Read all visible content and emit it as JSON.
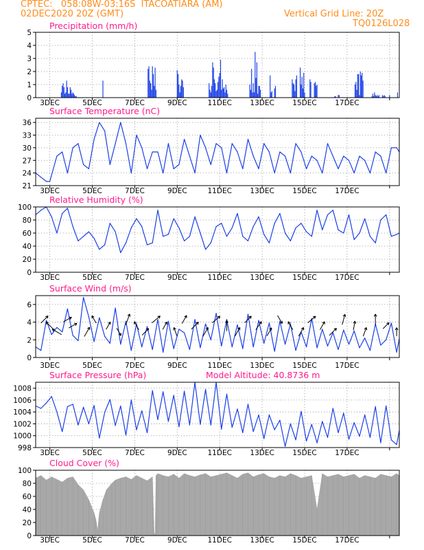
{
  "header": {
    "line1": "CPTEC:   058:08W-03:16S  ITACOATIARA (AM)",
    "line2": "02DEC2020 20Z (GMT)",
    "right1": "Vertical Grid Line: 20Z",
    "right2": "TQ0126L028"
  },
  "colors": {
    "line": "#1a3fe6",
    "title": "#ff1a8c",
    "header": "#ff8c1a",
    "cloud": "#a8a8a8",
    "arrow": "#000000"
  },
  "chart_data": [
    {
      "type": "bar",
      "title": "Precipitation (mm/h)",
      "ylim": [
        0,
        5
      ],
      "yticks": [
        0,
        1,
        2,
        3,
        4,
        5
      ],
      "xticks": [
        "3DEC",
        "5DEC",
        "7DEC",
        "9DEC",
        "11DEC",
        "13DEC",
        "15DEC",
        "17DEC"
      ],
      "xunit": "hours from 02DEC2020 20Z",
      "x": [
        29,
        30,
        31,
        32,
        33,
        34,
        35,
        36,
        37,
        38,
        39,
        40,
        41,
        42,
        43,
        44,
        45,
        46,
        76,
        127,
        128,
        129,
        130,
        131,
        132,
        133,
        134,
        135,
        136,
        160,
        161,
        162,
        163,
        164,
        165,
        166,
        167,
        196,
        197,
        198,
        199,
        200,
        201,
        202,
        203,
        204,
        205,
        206,
        207,
        208,
        209,
        210,
        211,
        212,
        213,
        214,
        215,
        216,
        217,
        242,
        243,
        244,
        245,
        246,
        247,
        248,
        249,
        250,
        251,
        252,
        253,
        254,
        265,
        266,
        267,
        270,
        271,
        290,
        291,
        292,
        293,
        294,
        295,
        299,
        300,
        301,
        302,
        303,
        304,
        310,
        311,
        315,
        316,
        317,
        318,
        338,
        339,
        342,
        343,
        361,
        362,
        363,
        364,
        365,
        366,
        367,
        368,
        369,
        370,
        380,
        381,
        382,
        383,
        384,
        385,
        386,
        387,
        388,
        392,
        393,
        394,
        395,
        400,
        409
      ],
      "values": [
        0.4,
        0.9,
        1.1,
        0.8,
        0.3,
        0.4,
        1.3,
        0.8,
        0.3,
        0.3,
        0.8,
        0.6,
        0.3,
        0.4,
        0.3,
        0.2,
        0.1,
        0.1,
        1.3,
        2.2,
        2.4,
        1.3,
        1.1,
        0.6,
        2.4,
        1.8,
        0.9,
        2.3,
        0.6,
        2.1,
        1.8,
        1.0,
        0.4,
        0.9,
        1.4,
        1.3,
        0.8,
        1.1,
        0.6,
        0.4,
        0.9,
        2.7,
        2.3,
        1.4,
        1.1,
        0.5,
        0.6,
        1.2,
        1.6,
        1.9,
        2.9,
        0.6,
        1.4,
        0.7,
        0.8,
        0.4,
        1.0,
        0.6,
        0.3,
        1.0,
        0.6,
        2.2,
        0.4,
        1.1,
        0.4,
        3.5,
        1.5,
        2.7,
        0.3,
        0.9,
        0.9,
        0.6,
        1.7,
        0.4,
        0.5,
        0.7,
        0.9,
        1.4,
        1.1,
        1.0,
        0.5,
        1.4,
        1.7,
        2.3,
        1.0,
        1.6,
        0.7,
        1.9,
        0.4,
        1.4,
        1.2,
        1.1,
        1.2,
        0.9,
        1.0,
        0.1,
        0.1,
        0.2,
        0.2,
        1.0,
        1.2,
        0.6,
        1.8,
        1.8,
        0.2,
        2.0,
        1.7,
        1.9,
        1.3,
        0.1,
        0.3,
        0.1,
        0.4,
        0.2,
        0.1,
        0.2,
        0.1,
        0.2,
        0.2,
        0.1,
        0.2,
        0.1,
        0.2,
        0.4
      ]
    },
    {
      "type": "line",
      "title": "Surface Temperature (nC)",
      "ylim": [
        21,
        37
      ],
      "yticks": [
        21,
        24,
        27,
        30,
        33,
        36
      ],
      "xticks": [
        "3DEC",
        "5DEC",
        "7DEC",
        "9DEC",
        "11DEC",
        "13DEC",
        "15DEC",
        "17DEC"
      ],
      "x": [
        0,
        6,
        12,
        16,
        24,
        30,
        36,
        42,
        48,
        54,
        60,
        66,
        72,
        78,
        84,
        90,
        96,
        102,
        108,
        114,
        120,
        126,
        132,
        138,
        144,
        150,
        156,
        162,
        168,
        174,
        180,
        186,
        192,
        198,
        204,
        210,
        216,
        222,
        228,
        234,
        240,
        246,
        252,
        258,
        264,
        270,
        276,
        282,
        288,
        294,
        300,
        306,
        312,
        318,
        324,
        330,
        336,
        342,
        348,
        354,
        360,
        366,
        372,
        378,
        384,
        390,
        396,
        402,
        408,
        411
      ],
      "values": [
        24,
        23,
        22,
        22,
        28,
        29,
        24,
        30,
        31,
        26,
        25,
        32,
        36,
        34,
        26,
        31,
        36,
        31,
        24,
        33,
        30,
        25,
        29,
        29,
        24,
        31,
        25,
        26,
        32,
        28,
        24,
        33,
        30,
        26,
        31,
        30,
        24,
        31,
        29,
        25,
        32,
        28,
        25,
        31,
        29,
        24,
        29,
        28,
        24,
        31,
        29,
        25,
        28,
        27,
        24,
        31,
        28,
        25,
        28,
        27,
        24,
        28,
        27,
        24,
        29,
        28,
        24,
        30,
        30,
        29
      ]
    },
    {
      "type": "line",
      "title": "Relative Humidity (%)",
      "ylim": [
        0,
        100
      ],
      "yticks": [
        0,
        20,
        40,
        60,
        80,
        100
      ],
      "xticks": [
        "3DEC",
        "5DEC",
        "7DEC",
        "9DEC",
        "11DEC",
        "13DEC",
        "15DEC",
        "17DEC"
      ],
      "x": [
        0,
        6,
        12,
        18,
        24,
        30,
        36,
        42,
        48,
        54,
        60,
        66,
        72,
        78,
        84,
        90,
        96,
        102,
        108,
        114,
        120,
        126,
        132,
        138,
        144,
        150,
        156,
        162,
        168,
        174,
        180,
        186,
        192,
        198,
        204,
        210,
        216,
        222,
        228,
        234,
        240,
        246,
        252,
        258,
        264,
        270,
        276,
        282,
        288,
        294,
        300,
        306,
        312,
        318,
        324,
        330,
        336,
        342,
        348,
        354,
        360,
        366,
        372,
        378,
        384,
        390,
        396,
        402,
        408,
        411
      ],
      "values": [
        88,
        95,
        100,
        85,
        60,
        90,
        98,
        70,
        48,
        55,
        62,
        52,
        35,
        42,
        75,
        62,
        30,
        45,
        68,
        82,
        70,
        42,
        45,
        95,
        55,
        58,
        82,
        68,
        48,
        55,
        85,
        60,
        35,
        45,
        70,
        75,
        55,
        68,
        90,
        55,
        48,
        70,
        85,
        58,
        45,
        75,
        90,
        60,
        48,
        68,
        75,
        62,
        55,
        95,
        65,
        88,
        95,
        65,
        60,
        88,
        50,
        60,
        82,
        55,
        45,
        80,
        88,
        55,
        58,
        60
      ]
    },
    {
      "type": "line",
      "title": "Surface Wind (m/s)",
      "ylim": [
        0,
        7
      ],
      "yticks": [
        0,
        2,
        4,
        6
      ],
      "xticks": [
        "3DEC",
        "5DEC",
        "7DEC",
        "9DEC",
        "11DEC",
        "13DEC",
        "15DEC",
        "17DEC"
      ],
      "x": [
        0,
        6,
        12,
        18,
        24,
        30,
        36,
        42,
        48,
        54,
        60,
        66,
        72,
        78,
        84,
        90,
        96,
        102,
        108,
        114,
        120,
        126,
        132,
        138,
        144,
        150,
        156,
        162,
        168,
        174,
        180,
        186,
        192,
        198,
        204,
        210,
        216,
        222,
        228,
        234,
        240,
        246,
        252,
        258,
        264,
        270,
        276,
        282,
        288,
        294,
        300,
        306,
        312,
        318,
        324,
        330,
        336,
        342,
        348,
        354,
        360,
        366,
        372,
        378,
        384,
        390,
        396,
        402,
        408,
        411
      ],
      "values": [
        1.2,
        0.8,
        4.2,
        2.6,
        3.4,
        2.9,
        5.5,
        2.5,
        1.9,
        6.8,
        4.6,
        1.8,
        4.5,
        2.4,
        1.6,
        5.6,
        1.5,
        4.1,
        0.8,
        3.8,
        1.2,
        3.5,
        0.9,
        4.3,
        0.6,
        4.1,
        1.0,
        3.2,
        2.8,
        0.9,
        4.3,
        1.1,
        3.8,
        2.0,
        5.0,
        1.3,
        4.3,
        1.2,
        3.7,
        1.0,
        4.9,
        1.2,
        4.2,
        1.6,
        3.9,
        0.7,
        4.1,
        1.5,
        3.8,
        0.8,
        2.9,
        1.2,
        4.4,
        1.1,
        3.2,
        1.3,
        2.8,
        0.9,
        3.1,
        1.5,
        3.0,
        1.1,
        2.2,
        0.8,
        3.8,
        1.4,
        2.0,
        3.9,
        0.6,
        2.1
      ],
      "arrows": {
        "x": [
          10,
          16,
          24,
          36,
          42,
          58,
          66,
          82,
          94,
          104,
          114,
          124,
          136,
          146,
          158,
          168,
          180,
          192,
          204,
          216,
          228,
          240,
          252,
          264,
          276,
          288,
          300,
          312,
          324,
          336,
          348,
          360,
          372,
          384,
          396,
          408
        ],
        "direction_deg": [
          45,
          135,
          150,
          30,
          30,
          60,
          120,
          60,
          300,
          70,
          120,
          45,
          40,
          60,
          110,
          60,
          45,
          60,
          40,
          90,
          60,
          45,
          55,
          60,
          300,
          120,
          60,
          40,
          60,
          45,
          75,
          80,
          70,
          90,
          45,
          90
        ],
        "speed": [
          3.5,
          4.0,
          4.0,
          3.0,
          3.0,
          4.0,
          2.5,
          2.5,
          2.5,
          4.5,
          3.0,
          3.0,
          4.0,
          2.5,
          3.0,
          3.0,
          3.5,
          3.5,
          3.5,
          4.0,
          3.5,
          3.0,
          3.5,
          3.0,
          3.0,
          3.0,
          3.5,
          3.5,
          3.0,
          3.5,
          4.0,
          3.0,
          3.0,
          4.0,
          2.5,
          2.5
        ]
      }
    },
    {
      "type": "line",
      "title": "Surface Pressure (hPa)",
      "annotation": "Model Altitude: 40.8736 m",
      "ylim": [
        998,
        1009
      ],
      "yticks": [
        998,
        1000,
        1002,
        1004,
        1006,
        1008
      ],
      "xticks": [
        "3DEC",
        "5DEC",
        "7DEC",
        "9DEC",
        "11DEC",
        "13DEC",
        "15DEC",
        "17DEC"
      ],
      "x": [
        0,
        6,
        12,
        18,
        24,
        30,
        36,
        42,
        48,
        54,
        60,
        66,
        72,
        78,
        84,
        90,
        96,
        102,
        108,
        114,
        120,
        126,
        132,
        138,
        144,
        150,
        156,
        162,
        168,
        174,
        180,
        186,
        192,
        198,
        204,
        210,
        216,
        222,
        228,
        234,
        240,
        246,
        252,
        258,
        264,
        270,
        276,
        282,
        288,
        294,
        300,
        306,
        312,
        318,
        324,
        330,
        336,
        342,
        348,
        354,
        360,
        366,
        372,
        378,
        384,
        390,
        396,
        402,
        408,
        411
      ],
      "values": [
        1005,
        1004.6,
        1005.5,
        1006.6,
        1004,
        1000.7,
        1004.9,
        1005.3,
        1001.8,
        1004.8,
        1002,
        1005.1,
        999.6,
        1003.9,
        1006.1,
        1001.7,
        1005,
        1000.1,
        1006,
        1001,
        1004.2,
        1000.5,
        1007.6,
        1002.7,
        1007.4,
        1002.4,
        1006.8,
        1001.5,
        1007.5,
        1001.8,
        1009,
        1001.9,
        1007.8,
        1001.8,
        1009,
        1001.1,
        1007,
        1001.4,
        1004.5,
        1000.5,
        1005.3,
        1000.7,
        1003.5,
        999.5,
        1003.5,
        1001,
        1002.6,
        998.2,
        1002,
        999.3,
        1004.1,
        999.1,
        1001.9,
        998.8,
        1002.4,
        999.7,
        1004.6,
        1000.5,
        1003.8,
        999.4,
        1002.2,
        999.9,
        1003.5,
        999.7,
        1004.9,
        998.8,
        1005,
        999.3,
        998.5,
        1000.9
      ]
    },
    {
      "type": "area",
      "title": "Cloud Cover (%)",
      "ylim": [
        0,
        100
      ],
      "yticks": [
        0,
        20,
        40,
        60,
        80,
        100
      ],
      "xticks": [
        "3DEC",
        "5DEC",
        "7DEC",
        "9DEC",
        "11DEC",
        "13DEC",
        "15DEC",
        "17DEC"
      ],
      "x": [
        0,
        6,
        12,
        18,
        24,
        30,
        36,
        42,
        48,
        54,
        60,
        66,
        68,
        70,
        72,
        76,
        80,
        86,
        90,
        96,
        102,
        108,
        114,
        120,
        126,
        132,
        134,
        135,
        136,
        138,
        144,
        150,
        156,
        162,
        168,
        174,
        180,
        186,
        192,
        198,
        204,
        210,
        216,
        222,
        228,
        234,
        240,
        246,
        252,
        258,
        264,
        270,
        276,
        282,
        288,
        294,
        300,
        306,
        312,
        318,
        324,
        330,
        336,
        342,
        348,
        354,
        360,
        366,
        372,
        378,
        384,
        390,
        396,
        402,
        408,
        411
      ],
      "values": [
        88,
        92,
        85,
        90,
        86,
        82,
        88,
        90,
        78,
        70,
        55,
        35,
        25,
        8,
        35,
        55,
        70,
        80,
        85,
        88,
        90,
        86,
        92,
        88,
        84,
        90,
        3,
        3,
        92,
        95,
        92,
        90,
        94,
        88,
        95,
        92,
        90,
        93,
        95,
        90,
        92,
        94,
        96,
        92,
        88,
        94,
        96,
        90,
        93,
        95,
        90,
        88,
        92,
        90,
        95,
        92,
        88,
        90,
        92,
        40,
        95,
        90,
        92,
        94,
        90,
        92,
        94,
        88,
        92,
        90,
        88,
        94,
        92,
        90,
        95,
        92
      ]
    }
  ]
}
